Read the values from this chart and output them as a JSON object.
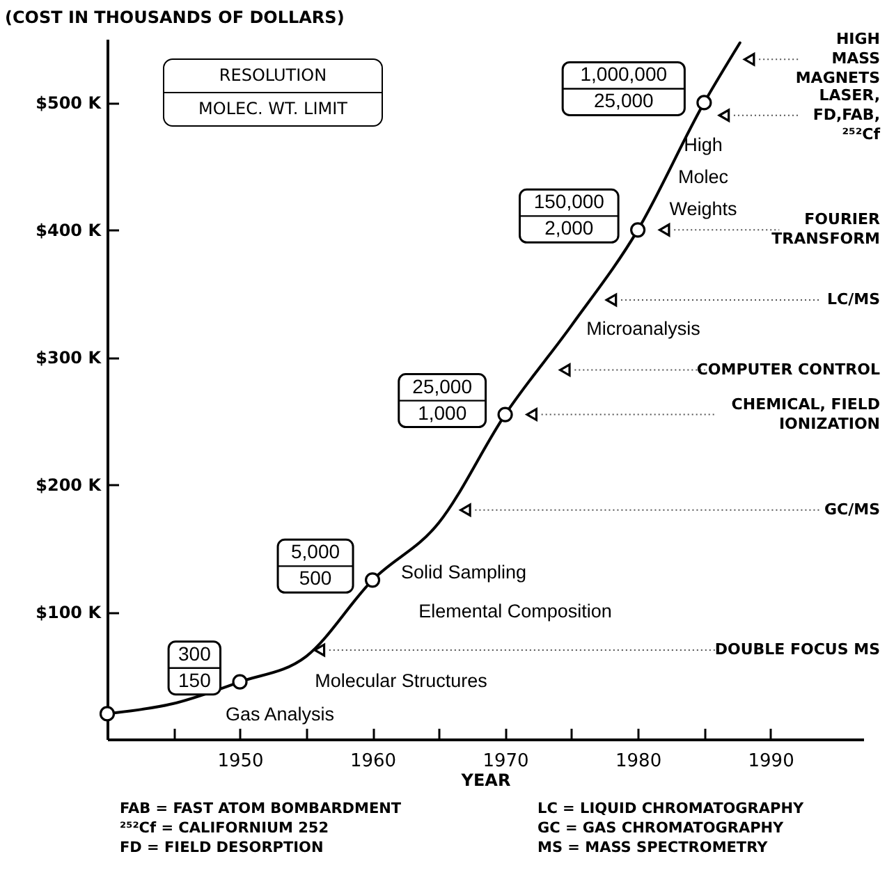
{
  "chart_data": {
    "type": "line",
    "xlabel": "YEAR",
    "ylabel": "(COST IN THOUSANDS OF DOLLARS)",
    "xlim": [
      1940,
      1997
    ],
    "ylim": [
      0,
      550
    ],
    "xticks": [
      {
        "value": 1945,
        "label": null
      },
      1950,
      {
        "value": 1955,
        "label": null
      },
      1960,
      {
        "value": 1965,
        "label": null
      },
      1970,
      {
        "value": 1975,
        "label": null
      },
      1980,
      {
        "value": 1985,
        "label": null
      },
      1990
    ],
    "yticks": [
      {
        "value": 100,
        "label": "$100 K"
      },
      {
        "value": 200,
        "label": "$200 K"
      },
      {
        "value": 300,
        "label": "$300 K"
      },
      {
        "value": 400,
        "label": "$400 K"
      },
      {
        "value": 500,
        "label": "$500 K"
      }
    ],
    "series": [
      {
        "color": "#000000",
        "x": [
          1940,
          1945,
          1950,
          1955,
          1960,
          1965,
          1970,
          1975,
          1980,
          1985,
          1987.7
        ],
        "values": [
          20,
          28,
          45,
          65,
          125,
          170,
          255,
          325,
          400,
          500,
          547
        ]
      },
      {
        "type": "scatter",
        "color": "#000000",
        "x": [
          1940,
          1950,
          1960,
          1970,
          1980,
          1985
        ],
        "values": [
          20,
          45,
          125,
          255,
          400,
          500
        ]
      }
    ],
    "annotations": [
      "RESOLUTION\nMOLEC. WT. LIMIT",
      "Gas Analysis",
      "Molecular Structures",
      "Solid Sampling",
      "Elemental Composition",
      "Microanalysis",
      "High\nMolec\nWeights",
      {
        "text": "300\n150",
        "x": 1950,
        "y": 45
      },
      {
        "text": "5,000\n500",
        "x": 1960,
        "y": 125
      },
      {
        "text": "25,000\n1,000",
        "x": 1970,
        "y": 255
      },
      {
        "text": "150,000\n2,000",
        "x": 1980,
        "y": 400
      },
      {
        "text": "1,000,000\n25,000",
        "x": 1985,
        "y": 500
      },
      {
        "text": "DOUBLE FOCUS MS",
        "x": 1956,
        "y": 70
      },
      {
        "text": "GC/MS",
        "x": 1967,
        "y": 180
      },
      {
        "text": "CHEMICAL, FIELD\nIONIZATION",
        "x": 1972,
        "y": 255
      },
      {
        "text": "COMPUTER CONTROL",
        "x": 1974.5,
        "y": 290
      },
      {
        "text": "LC/MS",
        "x": 1978,
        "y": 345
      },
      {
        "text": "FOURIER\nTRANSFORM",
        "x": 1982,
        "y": 400
      },
      {
        "text": "LASER,\nFD,FAB,\n²⁵²Cf",
        "x": 1986.5,
        "y": 490
      },
      {
        "text": "HIGH\nMASS\nMAGNETS",
        "x": 1988.4,
        "y": 534
      },
      "FAB = FAST ATOM BOMBARDMENT",
      "LC = LIQUID CHROMATOGRAPHY",
      "²⁵²Cf = CALIFORNIUM 252",
      "GC = GAS CHROMATOGRAPHY",
      "FD = FIELD DESORPTION",
      "MS = MASS SPECTROMETRY"
    ]
  }
}
